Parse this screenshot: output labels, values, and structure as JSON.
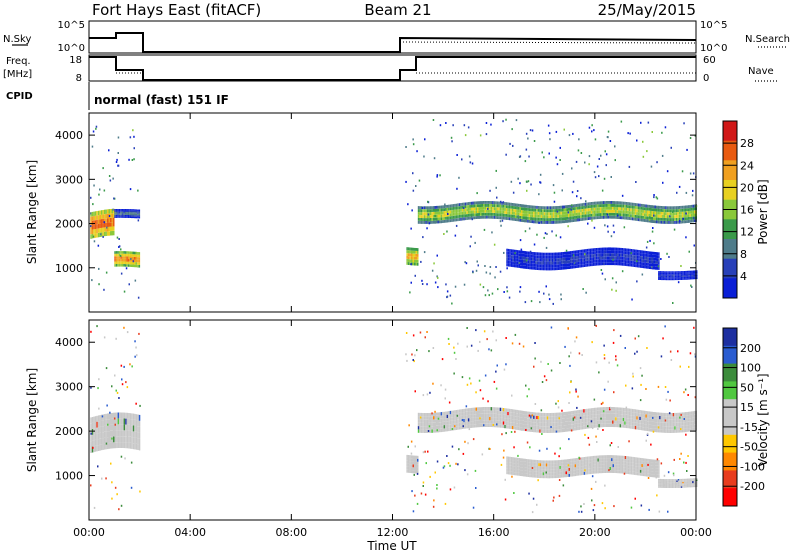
{
  "header": {
    "station": "Fort Hays East (fitACF)",
    "beam": "Beam 21",
    "date": "25/May/2015"
  },
  "top_panels": {
    "nsky_label": "N.Sky",
    "nsky_ticks": [
      "10^5",
      "10^0"
    ],
    "nsearch_label": "N.Search",
    "nsearch_ticks": [
      "10^5",
      "10^0"
    ],
    "freq_label": "Freq.",
    "freq_unit": "[MHz]",
    "freq_ticks": [
      "18",
      "8"
    ],
    "nave_label": "Nave",
    "nave_ticks": [
      "60",
      "0"
    ],
    "cpid_label": "CPID",
    "cpid_text": "normal (fast) 151 IF"
  },
  "colors": {
    "power_scale": [
      "#0a1fd6",
      "#2840b8",
      "#4f7c8a",
      "#3a9a4a",
      "#8ac83a",
      "#e8d020",
      "#f0a020",
      "#e85a10",
      "#d01818"
    ],
    "velocity_scale": [
      "#ff0000",
      "#e83c1e",
      "#ff8800",
      "#ffc800",
      "#c8c8c8",
      "#c8c8c8",
      "#50c840",
      "#3c8c3c",
      "#2a5cd0",
      "#1d2fa0"
    ],
    "ground_scatter": "#c8c8c8"
  },
  "chart_data": [
    {
      "type": "heatmap",
      "title": "Power",
      "xlabel": "",
      "ylabel": "Slant Range [km]",
      "xlim": [
        "00:00",
        "00:00"
      ],
      "ylim": [
        0,
        4500
      ],
      "yticks": [
        "1000",
        "2000",
        "3000",
        "4000"
      ],
      "colorbar": {
        "label": "Power [dB]",
        "ticks": [
          "4",
          "8",
          "12",
          "16",
          "20",
          "24",
          "28"
        ],
        "range": [
          0,
          30
        ]
      },
      "bands": [
        {
          "t_start": 0.05,
          "t_end": 1.0,
          "range_center": 1950,
          "range_width": 600,
          "power": 26
        },
        {
          "t_start": 1.0,
          "t_end": 2.0,
          "range_center": 1150,
          "range_width": 350,
          "power": 24
        },
        {
          "t_start": 1.0,
          "t_end": 2.0,
          "range_center": 2200,
          "range_width": 200,
          "power": 10
        },
        {
          "t_start": 12.55,
          "t_end": 13.0,
          "range_center": 1300,
          "range_width": 400,
          "power": 22
        },
        {
          "t_start": 13.0,
          "t_end": 24.0,
          "range_center": 2250,
          "range_width": 400,
          "power": 18
        },
        {
          "t_start": 16.5,
          "t_end": 22.5,
          "range_center": 1200,
          "range_width": 400,
          "power": 6
        },
        {
          "t_start": 22.5,
          "t_end": 24.0,
          "range_center": 850,
          "range_width": 200,
          "power": 5
        }
      ]
    },
    {
      "type": "heatmap",
      "title": "Velocity",
      "xlabel": "Time UT",
      "ylabel": "Slant Range [km]",
      "xlim": [
        "00:00",
        "00:00"
      ],
      "ylim": [
        0,
        4500
      ],
      "yticks": [
        "1000",
        "2000",
        "3000",
        "4000"
      ],
      "xticks": [
        "00:00",
        "04:00",
        "08:00",
        "12:00",
        "16:00",
        "20:00",
        "00:00"
      ],
      "colorbar": {
        "label": "Velocity [m s⁻¹]",
        "ticks": [
          "200",
          "100",
          "50",
          "15",
          "-15",
          "-50",
          "-100",
          "-200"
        ],
        "range": [
          -250,
          250
        ]
      },
      "bands": [
        {
          "t_start": 0.05,
          "t_end": 2.0,
          "range_center": 1900,
          "range_width": 800,
          "velocity": 0
        },
        {
          "t_start": 12.55,
          "t_end": 13.0,
          "range_center": 1300,
          "range_width": 400,
          "velocity": 0
        },
        {
          "t_start": 13.0,
          "t_end": 24.0,
          "range_center": 2250,
          "range_width": 450,
          "velocity": 0
        },
        {
          "t_start": 16.5,
          "t_end": 22.5,
          "range_center": 1200,
          "range_width": 400,
          "velocity": 0
        },
        {
          "t_start": 22.5,
          "t_end": 24.0,
          "range_center": 850,
          "range_width": 200,
          "velocity": 0
        }
      ]
    }
  ]
}
